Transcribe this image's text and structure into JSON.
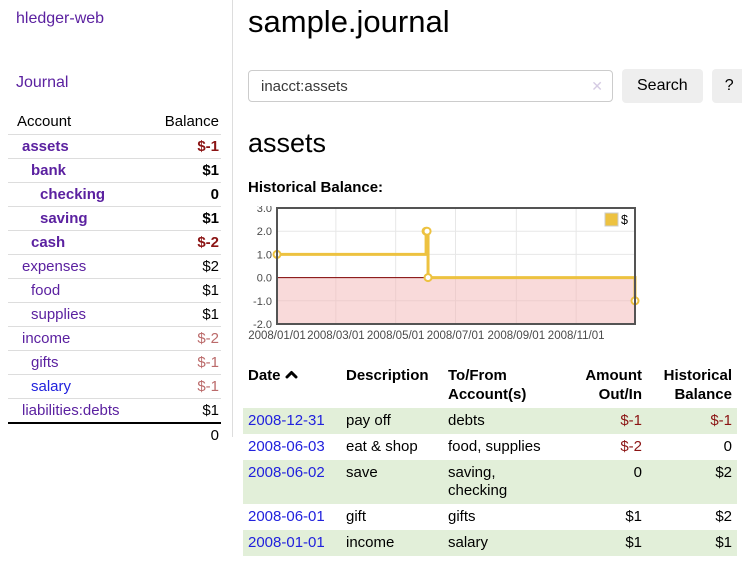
{
  "app": {
    "title": "hledger-web"
  },
  "sidebar": {
    "nav": [
      {
        "label": "Journal"
      }
    ],
    "account_header": "Account",
    "balance_header": "Balance",
    "accounts": [
      {
        "name": "assets",
        "level": 1,
        "bold": true,
        "link_blue": false,
        "balance": "$-1",
        "balance_class": "neg"
      },
      {
        "name": "bank",
        "level": 2,
        "bold": true,
        "link_blue": false,
        "balance": "$1",
        "balance_class": ""
      },
      {
        "name": "checking",
        "level": 3,
        "bold": true,
        "link_blue": false,
        "balance": "0",
        "balance_class": ""
      },
      {
        "name": "saving",
        "level": 3,
        "bold": true,
        "link_blue": false,
        "balance": "$1",
        "balance_class": ""
      },
      {
        "name": "cash",
        "level": 2,
        "bold": true,
        "link_blue": false,
        "balance": "$-2",
        "balance_class": "neg"
      },
      {
        "name": "expenses",
        "level": 1,
        "bold": false,
        "link_blue": false,
        "balance": "$2",
        "balance_class": ""
      },
      {
        "name": "food",
        "level": 2,
        "bold": false,
        "link_blue": false,
        "balance": "$1",
        "balance_class": ""
      },
      {
        "name": "supplies",
        "level": 2,
        "bold": false,
        "link_blue": false,
        "balance": "$1",
        "balance_class": ""
      },
      {
        "name": "income",
        "level": 1,
        "bold": false,
        "link_blue": false,
        "balance": "$-2",
        "balance_class": "dimneg"
      },
      {
        "name": "gifts",
        "level": 2,
        "bold": false,
        "link_blue": false,
        "balance": "$-1",
        "balance_class": "dimneg"
      },
      {
        "name": "salary",
        "level": 2,
        "bold": false,
        "link_blue": true,
        "balance": "$-1",
        "balance_class": "dimneg"
      },
      {
        "name": "liabilities:debts",
        "level": 1,
        "bold": false,
        "link_blue": false,
        "balance": "$1",
        "balance_class": ""
      }
    ],
    "total": "0"
  },
  "header": {
    "title": "sample.journal"
  },
  "search": {
    "value": "inacct:assets",
    "clear_icon": "✕",
    "button_label": "Search",
    "help_label": "?"
  },
  "account_page": {
    "heading": "assets",
    "chart_label": "Historical Balance:"
  },
  "chart_data": {
    "type": "line",
    "title": "Historical Balance",
    "steps": true,
    "series": [
      {
        "name": "$",
        "color": "#edc240",
        "points": [
          [
            "2008-01-01",
            1
          ],
          [
            "2008-06-01",
            2
          ],
          [
            "2008-06-02",
            2
          ],
          [
            "2008-06-03",
            0
          ],
          [
            "2008-12-31",
            -1
          ]
        ]
      }
    ],
    "x_start": "2008-01-01",
    "x_end": "2008-12-31",
    "x_ticks": [
      "2008/01/01",
      "2008/03/01",
      "2008/05/01",
      "2008/07/01",
      "2008/09/01",
      "2008/11/01"
    ],
    "y_ticks": [
      "3.0",
      "2.0",
      "1.0",
      "0.0",
      "-1.0",
      "-2.0"
    ],
    "ylim": [
      -2,
      3
    ],
    "grid": true,
    "legend": {
      "label": "$",
      "position": "top-right"
    },
    "colors": {
      "line": "#edc240",
      "marker_fill": "#ffffff",
      "border": "#545454",
      "gridline": "#e7e7e7",
      "negative_fill": "#f4b6b6",
      "zero_line": "#800000",
      "tick_text": "#4a4a4a"
    }
  },
  "register": {
    "columns": [
      {
        "line1": "Date",
        "line2": "",
        "align": "left",
        "sorted": "asc"
      },
      {
        "line1": "Description",
        "line2": "",
        "align": "left"
      },
      {
        "line1": "To/From",
        "line2": "Account(s)",
        "align": "left"
      },
      {
        "line1": "Amount",
        "line2": "Out/In",
        "align": "right"
      },
      {
        "line1": "Historical",
        "line2": "Balance",
        "align": "right"
      }
    ],
    "rows": [
      {
        "date": "2008-12-31",
        "description": "pay off",
        "accounts": "debts",
        "amount": "$-1",
        "amount_class": "neg",
        "balance": "$-1",
        "balance_class": "neg"
      },
      {
        "date": "2008-06-03",
        "description": "eat & shop",
        "accounts": "food, supplies",
        "amount": "$-2",
        "amount_class": "neg",
        "balance": "0",
        "balance_class": ""
      },
      {
        "date": "2008-06-02",
        "description": "save",
        "accounts": "saving, checking",
        "amount": "0",
        "amount_class": "",
        "balance": "$2",
        "balance_class": ""
      },
      {
        "date": "2008-06-01",
        "description": "gift",
        "accounts": "gifts",
        "amount": "$1",
        "amount_class": "",
        "balance": "$2",
        "balance_class": ""
      },
      {
        "date": "2008-01-01",
        "description": "income",
        "accounts": "salary",
        "amount": "$1",
        "amount_class": "",
        "balance": "$1",
        "balance_class": ""
      }
    ]
  }
}
